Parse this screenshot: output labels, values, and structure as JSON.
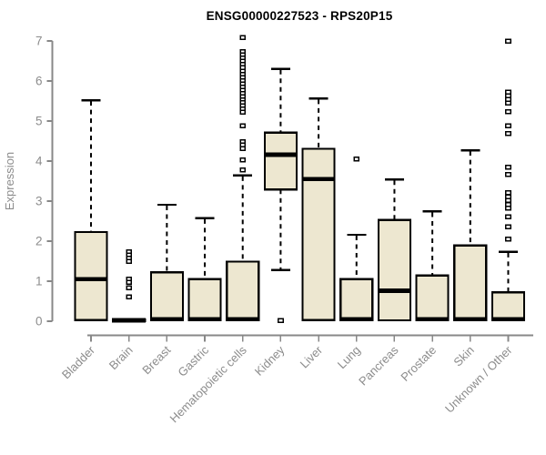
{
  "chart_data": {
    "type": "boxplot",
    "title": "ENSG00000227523 - RPS20P15",
    "ylabel": "Expression",
    "xlabel": "",
    "ylim": [
      0,
      7
    ],
    "yticks": [
      0,
      1,
      2,
      3,
      4,
      5,
      6,
      7
    ],
    "grid": false,
    "legend": "none",
    "categories": [
      "Bladder",
      "Brain",
      "Breast",
      "Gastric",
      "Hematopoietic cells",
      "Kidney",
      "Liver",
      "Lung",
      "Pancreas",
      "Prostate",
      "Skin",
      "Unknown / Other"
    ],
    "boxes": [
      {
        "label": "Bladder",
        "whisker_low": 0,
        "q1": 0.03,
        "median": 1.05,
        "q3": 2.23,
        "whisker_high": 5.52,
        "outliers": []
      },
      {
        "label": "Brain",
        "whisker_low": 0,
        "q1": 0.0,
        "median": 0.02,
        "q3": 0.04,
        "whisker_high": 0.04,
        "outliers": [
          1.73,
          1.65,
          1.57,
          1.49,
          1.05,
          0.97,
          0.84,
          0.61
        ]
      },
      {
        "label": "Breast",
        "whisker_low": 0,
        "q1": 0.02,
        "median": 0.05,
        "q3": 1.22,
        "whisker_high": 2.91,
        "outliers": []
      },
      {
        "label": "Gastric",
        "whisker_low": 0,
        "q1": 0.02,
        "median": 0.05,
        "q3": 1.05,
        "whisker_high": 2.57,
        "outliers": []
      },
      {
        "label": "Hematopoietic cells",
        "whisker_low": 0,
        "q1": 0.02,
        "median": 0.05,
        "q3": 1.49,
        "whisker_high": 3.64,
        "outliers": [
          7.08,
          6.73,
          6.65,
          6.57,
          6.49,
          6.41,
          6.33,
          6.25,
          6.17,
          6.09,
          6.01,
          5.93,
          5.85,
          5.77,
          5.69,
          5.61,
          5.53,
          5.46,
          5.38,
          5.3,
          5.22,
          4.88,
          4.48,
          4.4,
          4.31,
          4.03,
          3.78
        ]
      },
      {
        "label": "Kidney",
        "whisker_low": 1.28,
        "q1": 3.29,
        "median": 4.16,
        "q3": 4.71,
        "whisker_high": 6.3,
        "outliers": [
          0.02
        ]
      },
      {
        "label": "Liver",
        "whisker_low": 0,
        "q1": 0.03,
        "median": 3.55,
        "q3": 4.31,
        "whisker_high": 5.56,
        "outliers": []
      },
      {
        "label": "Lung",
        "whisker_low": 0,
        "q1": 0.02,
        "median": 0.05,
        "q3": 1.05,
        "whisker_high": 2.16,
        "outliers": [
          4.05
        ]
      },
      {
        "label": "Pancreas",
        "whisker_low": 0,
        "q1": 0.02,
        "median": 0.76,
        "q3": 2.53,
        "whisker_high": 3.54,
        "outliers": []
      },
      {
        "label": "Prostate",
        "whisker_low": 0,
        "q1": 0.02,
        "median": 0.05,
        "q3": 1.14,
        "whisker_high": 2.74,
        "outliers": []
      },
      {
        "label": "Skin",
        "whisker_low": 0,
        "q1": 0.02,
        "median": 0.05,
        "q3": 1.89,
        "whisker_high": 4.27,
        "outliers": []
      },
      {
        "label": "Unknown / Other",
        "whisker_low": 0,
        "q1": 0.02,
        "median": 0.05,
        "q3": 0.72,
        "whisker_high": 1.73,
        "outliers": [
          7.0,
          5.72,
          5.63,
          5.54,
          5.45,
          5.23,
          4.88,
          4.69,
          3.85,
          3.66,
          3.21,
          3.11,
          3.02,
          2.92,
          2.82,
          2.61,
          2.36,
          2.05
        ]
      }
    ],
    "colors": {
      "box_fill": "#EDE7D0",
      "box_border": "#000000",
      "median": "#000000",
      "whisker": "#000000",
      "outlier_fill": "#ffffff",
      "axis": "#888888",
      "tick_label": "#8c8c8c",
      "title": "#000000",
      "background": "#ffffff"
    }
  }
}
